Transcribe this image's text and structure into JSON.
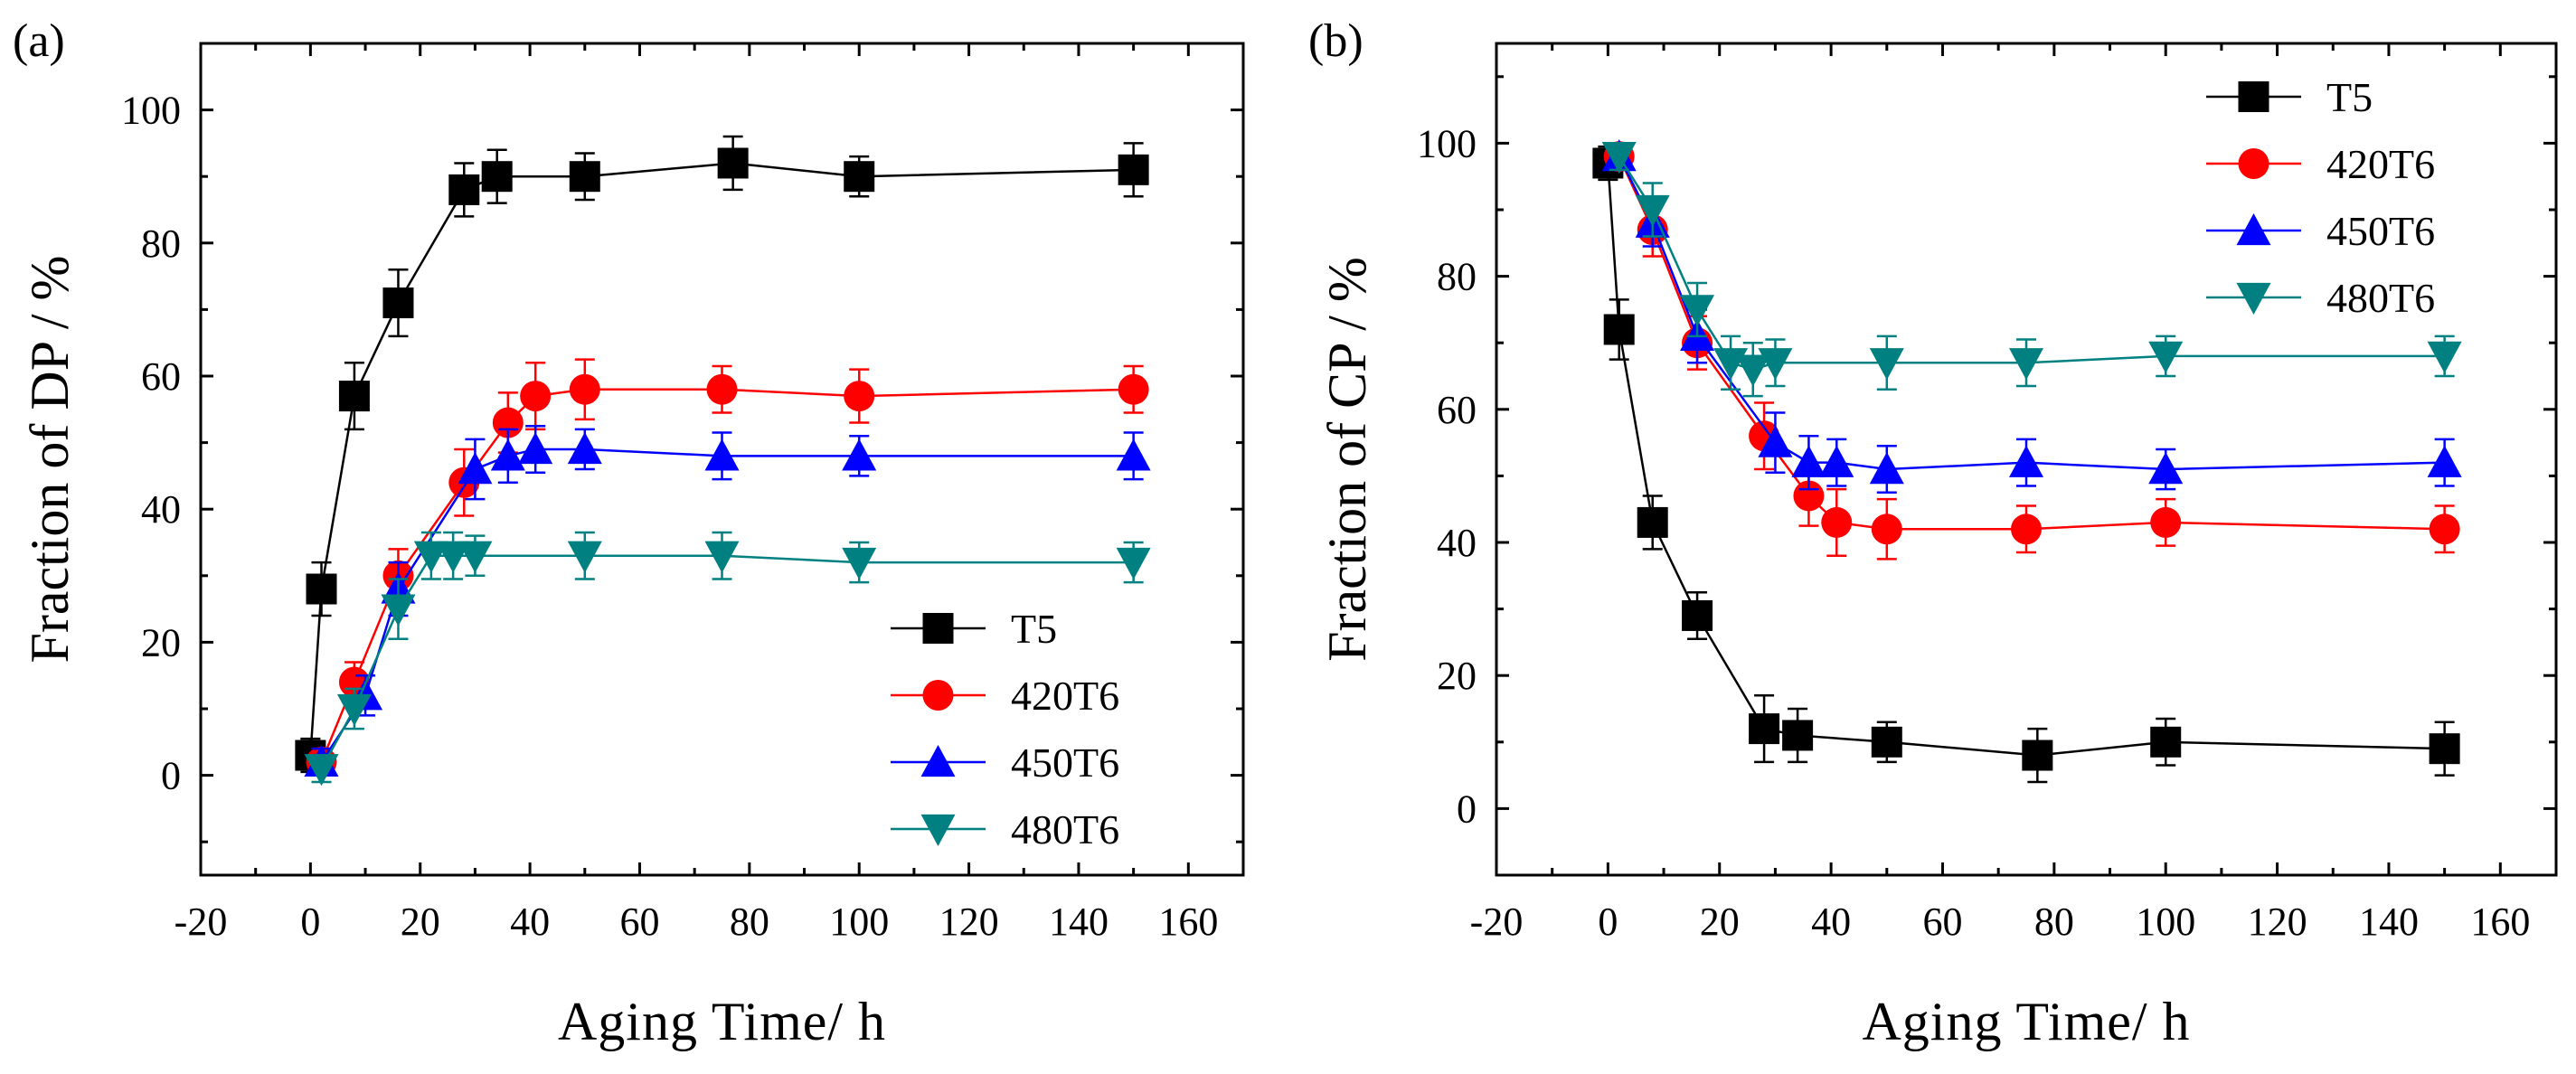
{
  "figure": {
    "panel_labels": [
      "(a)",
      "(b)"
    ]
  },
  "chart_data": [
    {
      "type": "line",
      "panel": "(a)",
      "xlabel": "Aging Time/ h",
      "ylabel": "Fraction of DP / %",
      "xlim": [
        -20,
        170
      ],
      "ylim": [
        -15,
        110
      ],
      "xticks": [
        -20,
        0,
        20,
        40,
        60,
        80,
        100,
        120,
        140,
        160
      ],
      "yticks": [
        0,
        20,
        40,
        60,
        80,
        100
      ],
      "grid": false,
      "legend_position": "bottom-right",
      "series": [
        {
          "name": "T5",
          "color": "#000000",
          "marker": "square",
          "x": [
            0,
            2,
            8,
            16,
            28,
            34,
            50,
            77,
            100,
            150
          ],
          "y": [
            3,
            28,
            57,
            71,
            88,
            90,
            90,
            92,
            90,
            91
          ],
          "err": [
            2.5,
            4,
            5,
            5,
            4,
            4,
            3.5,
            4,
            3,
            4
          ]
        },
        {
          "name": "420T6",
          "color": "#ff0000",
          "marker": "circle",
          "x": [
            2,
            8,
            16,
            28,
            36,
            41,
            50,
            75,
            100,
            150
          ],
          "y": [
            2,
            14,
            30,
            44,
            53,
            57,
            58,
            58,
            57,
            58
          ],
          "err": [
            2,
            3,
            4,
            5,
            4.5,
            5,
            4.5,
            3.5,
            4,
            3.5
          ]
        },
        {
          "name": "450T6",
          "color": "#0000ff",
          "marker": "triangle-up",
          "x": [
            2,
            10,
            16,
            30,
            36,
            41,
            50,
            75,
            100,
            150
          ],
          "y": [
            2,
            12,
            28,
            46,
            48,
            49,
            49,
            48,
            48,
            48
          ],
          "err": [
            2,
            3,
            4,
            4.5,
            4,
            3.5,
            3,
            3.5,
            3,
            3.5
          ]
        },
        {
          "name": "480T6",
          "color": "#008080",
          "marker": "triangle-down",
          "x": [
            2,
            8,
            16,
            22,
            26,
            30,
            50,
            75,
            100,
            150
          ],
          "y": [
            1,
            10,
            25,
            33,
            33,
            33,
            33,
            33,
            32,
            32
          ],
          "err": [
            2,
            3,
            4.5,
            3.5,
            3.5,
            3,
            3.5,
            3.5,
            3,
            3
          ]
        }
      ]
    },
    {
      "type": "line",
      "panel": "(b)",
      "xlabel": "Aging Time/ h",
      "ylabel": "Fraction of CP / %",
      "xlim": [
        -20,
        170
      ],
      "ylim": [
        -10,
        115
      ],
      "xticks": [
        -20,
        0,
        20,
        40,
        60,
        80,
        100,
        120,
        140,
        160
      ],
      "yticks": [
        0,
        20,
        40,
        60,
        80,
        100
      ],
      "grid": false,
      "legend_position": "top-right",
      "series": [
        {
          "name": "T5",
          "color": "#000000",
          "marker": "square",
          "x": [
            0,
            2,
            8,
            16,
            28,
            34,
            50,
            77,
            100,
            150
          ],
          "y": [
            97,
            72,
            43,
            29,
            12,
            11,
            10,
            8,
            10,
            9
          ],
          "err": [
            2.5,
            4.5,
            4,
            3.5,
            5,
            4,
            3,
            4,
            3.5,
            4
          ]
        },
        {
          "name": "420T6",
          "color": "#ff0000",
          "marker": "circle",
          "x": [
            2,
            8,
            16,
            28,
            36,
            41,
            50,
            75,
            100,
            150
          ],
          "y": [
            98,
            87,
            70,
            56,
            47,
            43,
            42,
            42,
            43,
            42
          ],
          "err": [
            2,
            4,
            4,
            5,
            4.5,
            5,
            4.5,
            3.5,
            3.5,
            3.5
          ]
        },
        {
          "name": "450T6",
          "color": "#0000ff",
          "marker": "triangle-up",
          "x": [
            2,
            8,
            16,
            30,
            36,
            41,
            50,
            75,
            100,
            150
          ],
          "y": [
            98,
            88,
            71,
            55,
            52,
            52,
            51,
            52,
            51,
            52
          ],
          "err": [
            2,
            3.5,
            4,
            4.5,
            4,
            3.5,
            3.5,
            3.5,
            3,
            3.5
          ]
        },
        {
          "name": "480T6",
          "color": "#008080",
          "marker": "triangle-down",
          "x": [
            2,
            8,
            16,
            22,
            26,
            30,
            50,
            75,
            100,
            150
          ],
          "y": [
            98,
            90,
            75,
            67,
            66,
            67,
            67,
            67,
            68,
            68
          ],
          "err": [
            2,
            4,
            4,
            4,
            4,
            3.5,
            4,
            3.5,
            3,
            3
          ]
        }
      ]
    }
  ]
}
